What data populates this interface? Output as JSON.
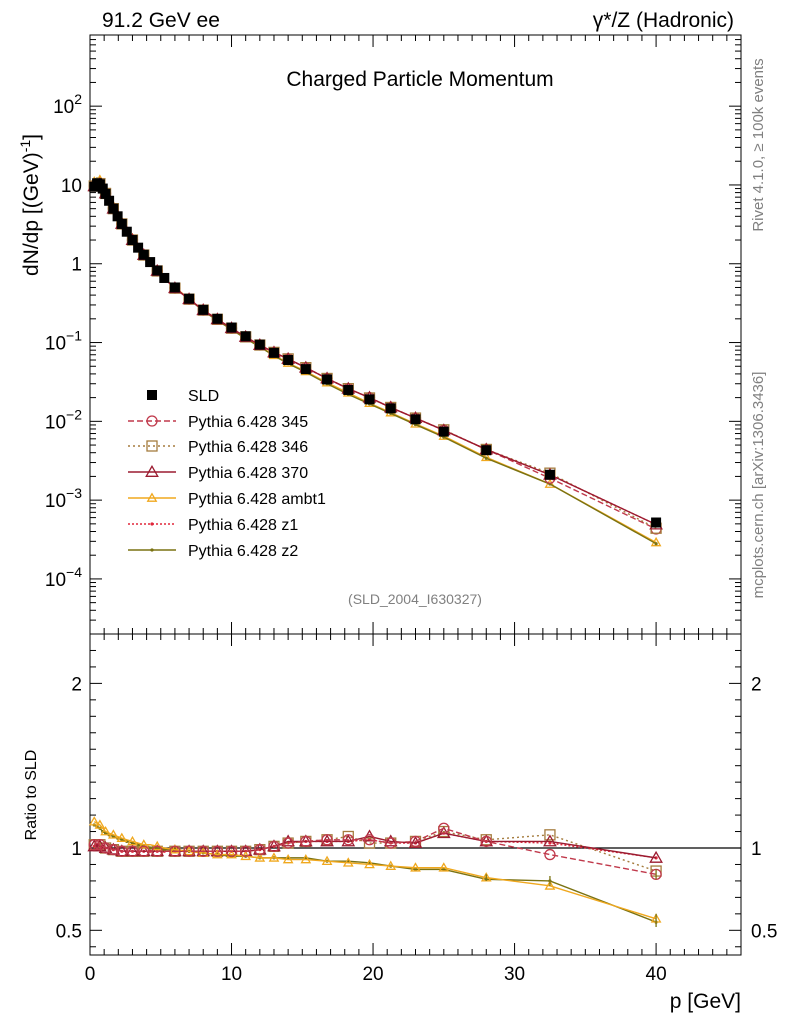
{
  "header": {
    "left": "91.2 GeV ee",
    "right": "γ*/Z (Hadronic)"
  },
  "side_text": {
    "top": "Rivet 4.1.0, ≥ 100k events",
    "bottom": "mcplots.cern.ch [arXiv:1306.3436]"
  },
  "colors": {
    "SLD": "#000000",
    "Pythia 6.428 345": "#c0394b",
    "Pythia 6.428 346": "#a57c3e",
    "Pythia 6.428 370": "#9b1b30",
    "Pythia 6.428 ambt1": "#f0a81e",
    "Pythia 6.428 z1": "#e0263a",
    "Pythia 6.428 z2": "#7a7212"
  },
  "chart_data": [
    {
      "type": "line",
      "title": "Charged Particle Momentum",
      "subtitle": "(SLD_2004_I630327)",
      "ylabel": "dN/dp [(GeV)^-1]",
      "yscale": "log",
      "xlim": [
        0,
        46
      ],
      "ylim": [
        2e-05,
        800
      ],
      "yticks": [
        {
          "v": 0.0001,
          "base": "10",
          "exp": "−4"
        },
        {
          "v": 0.001,
          "base": "10",
          "exp": "−3"
        },
        {
          "v": 0.01,
          "base": "10",
          "exp": "−2"
        },
        {
          "v": 0.1,
          "base": "10",
          "exp": "−1"
        },
        {
          "v": 1,
          "base": "1",
          "exp": ""
        },
        {
          "v": 10,
          "base": "10",
          "exp": ""
        },
        {
          "v": 100,
          "base": "10",
          "exp": "2"
        }
      ],
      "x": [
        0.3,
        0.5,
        0.7,
        0.9,
        1.1,
        1.35,
        1.65,
        1.95,
        2.25,
        2.6,
        3.0,
        3.4,
        3.8,
        4.25,
        4.75,
        5.25,
        6.0,
        7.0,
        8.0,
        9.0,
        10.0,
        11.0,
        12.0,
        13.0,
        14.0,
        15.25,
        16.75,
        18.25,
        19.75,
        21.25,
        23.0,
        25.0,
        28.0,
        32.5,
        40.0
      ],
      "series": [
        {
          "name": "SLD",
          "marker": "square",
          "dash": "",
          "values": [
            9.5,
            10.5,
            10.2,
            9.0,
            7.7,
            6.3,
            5.0,
            4.0,
            3.2,
            2.55,
            2.0,
            1.6,
            1.3,
            1.05,
            0.82,
            0.66,
            0.5,
            0.36,
            0.26,
            0.2,
            0.155,
            0.12,
            0.094,
            0.074,
            0.06,
            0.046,
            0.034,
            0.025,
            0.019,
            0.0146,
            0.0106,
            0.0074,
            0.0043,
            0.0021,
            0.00052
          ]
        },
        {
          "name": "Pythia 6.428 345",
          "marker": "circle",
          "dash": "6,3",
          "values": [
            9.7,
            10.8,
            10.4,
            9.1,
            7.8,
            6.3,
            5.0,
            4.0,
            3.2,
            2.55,
            2.0,
            1.6,
            1.29,
            1.04,
            0.81,
            0.65,
            0.49,
            0.355,
            0.258,
            0.197,
            0.152,
            0.118,
            0.093,
            0.075,
            0.062,
            0.048,
            0.035,
            0.026,
            0.02,
            0.015,
            0.011,
            0.0077,
            0.0044,
            0.0019,
            0.00043
          ]
        },
        {
          "name": "Pythia 6.428 346",
          "marker": "square-open",
          "dash": "2,3",
          "values": [
            9.7,
            10.8,
            10.4,
            9.1,
            7.8,
            6.3,
            5.0,
            4.0,
            3.2,
            2.55,
            2.0,
            1.6,
            1.29,
            1.04,
            0.81,
            0.65,
            0.49,
            0.355,
            0.258,
            0.197,
            0.152,
            0.118,
            0.093,
            0.075,
            0.062,
            0.048,
            0.035,
            0.026,
            0.0198,
            0.015,
            0.011,
            0.0078,
            0.0044,
            0.0022,
            0.00044
          ]
        },
        {
          "name": "Pythia 6.428 370",
          "marker": "triangle-open",
          "dash": "",
          "values": [
            9.6,
            10.7,
            10.3,
            9.1,
            7.8,
            6.3,
            5.0,
            4.0,
            3.2,
            2.55,
            2.0,
            1.6,
            1.29,
            1.04,
            0.81,
            0.65,
            0.49,
            0.355,
            0.258,
            0.197,
            0.152,
            0.118,
            0.093,
            0.075,
            0.062,
            0.048,
            0.035,
            0.026,
            0.02,
            0.015,
            0.011,
            0.0077,
            0.0044,
            0.0021,
            0.00049
          ]
        },
        {
          "name": "Pythia 6.428 ambt1",
          "marker": "triangle",
          "dash": "",
          "values": [
            11.0,
            12.1,
            11.6,
            10.1,
            8.5,
            6.9,
            5.4,
            4.3,
            3.4,
            2.7,
            2.1,
            1.66,
            1.33,
            1.07,
            0.83,
            0.66,
            0.5,
            0.36,
            0.255,
            0.193,
            0.148,
            0.113,
            0.089,
            0.069,
            0.055,
            0.043,
            0.031,
            0.023,
            0.017,
            0.0129,
            0.0093,
            0.0065,
            0.0035,
            0.0016,
            0.00029
          ]
        },
        {
          "name": "Pythia 6.428 z1",
          "marker": "dot",
          "dash": "2,2",
          "values": [
            9.6,
            10.7,
            10.3,
            9.0,
            7.7,
            6.3,
            5.0,
            4.0,
            3.2,
            2.55,
            2.0,
            1.6,
            1.29,
            1.04,
            0.81,
            0.65,
            0.49,
            0.355,
            0.258,
            0.197,
            0.152,
            0.118,
            0.093,
            0.075,
            0.062,
            0.048,
            0.035,
            0.026,
            0.02,
            0.015,
            0.011,
            0.0077,
            0.0044,
            0.0021,
            0.00049
          ]
        },
        {
          "name": "Pythia 6.428 z2",
          "marker": "dot",
          "dash": "",
          "values": [
            10.8,
            11.9,
            11.4,
            9.9,
            8.4,
            6.8,
            5.35,
            4.25,
            3.35,
            2.65,
            2.05,
            1.63,
            1.31,
            1.05,
            0.82,
            0.655,
            0.495,
            0.355,
            0.252,
            0.19,
            0.146,
            0.112,
            0.088,
            0.068,
            0.054,
            0.042,
            0.03,
            0.022,
            0.0166,
            0.0126,
            0.0091,
            0.0063,
            0.0034,
            0.0016,
            0.00028
          ]
        }
      ]
    },
    {
      "type": "line",
      "title": "",
      "xlabel": "p [GeV]",
      "ylabel": "Ratio to SLD",
      "xlim": [
        0,
        46
      ],
      "ylim": [
        0.35,
        2.3
      ],
      "xticks": [
        0,
        10,
        20,
        30,
        40
      ],
      "yticks": [
        0.5,
        1,
        2
      ],
      "reference": 1,
      "x": [
        0.3,
        0.5,
        0.7,
        0.9,
        1.1,
        1.35,
        1.65,
        1.95,
        2.25,
        2.6,
        3.0,
        3.4,
        3.8,
        4.25,
        4.75,
        5.25,
        6.0,
        7.0,
        8.0,
        9.0,
        10.0,
        11.0,
        12.0,
        13.0,
        14.0,
        15.25,
        16.75,
        18.25,
        19.75,
        21.25,
        23.0,
        25.0,
        28.0,
        32.5,
        40.0
      ],
      "series": [
        {
          "name": "Pythia 6.428 345",
          "marker": "circle",
          "dash": "6,3",
          "values": [
            1.02,
            1.03,
            1.02,
            1.01,
            1.0,
            1.0,
            0.99,
            0.99,
            0.98,
            0.98,
            0.98,
            0.98,
            0.98,
            0.98,
            0.98,
            0.98,
            0.98,
            0.98,
            0.98,
            0.98,
            0.98,
            0.98,
            0.99,
            1.01,
            1.03,
            1.04,
            1.05,
            1.05,
            1.05,
            1.03,
            1.04,
            1.12,
            1.04,
            0.96,
            0.84
          ]
        },
        {
          "name": "Pythia 6.428 346",
          "marker": "square-open",
          "dash": "2,3",
          "values": [
            1.02,
            1.03,
            1.02,
            1.01,
            1.0,
            1.0,
            0.99,
            0.99,
            0.98,
            0.98,
            0.98,
            0.98,
            0.98,
            0.98,
            0.98,
            0.98,
            0.98,
            0.98,
            0.98,
            0.98,
            0.98,
            0.98,
            0.99,
            1.01,
            1.03,
            1.04,
            1.05,
            1.07,
            1.03,
            1.03,
            1.04,
            1.1,
            1.05,
            1.08,
            0.86
          ]
        },
        {
          "name": "Pythia 6.428 370",
          "marker": "triangle-open",
          "dash": "",
          "values": [
            1.01,
            1.02,
            1.01,
            1.01,
            1.0,
            1.0,
            0.99,
            0.99,
            0.98,
            0.98,
            0.98,
            0.98,
            0.98,
            0.98,
            0.98,
            0.98,
            0.98,
            0.98,
            0.98,
            0.98,
            0.98,
            0.98,
            0.99,
            1.01,
            1.04,
            1.04,
            1.04,
            1.04,
            1.07,
            1.04,
            1.03,
            1.09,
            1.04,
            1.04,
            0.94
          ]
        },
        {
          "name": "Pythia 6.428 ambt1",
          "marker": "triangle",
          "dash": "",
          "values": [
            1.16,
            1.15,
            1.14,
            1.12,
            1.1,
            1.09,
            1.08,
            1.07,
            1.06,
            1.05,
            1.04,
            1.03,
            1.02,
            1.02,
            1.01,
            1.0,
            0.99,
            0.98,
            0.97,
            0.96,
            0.96,
            0.95,
            0.94,
            0.94,
            0.93,
            0.93,
            0.92,
            0.91,
            0.9,
            0.89,
            0.88,
            0.88,
            0.82,
            0.77,
            0.57
          ]
        },
        {
          "name": "Pythia 6.428 z1",
          "marker": "dot",
          "dash": "2,2",
          "values": [
            1.01,
            1.02,
            1.01,
            1.0,
            1.0,
            0.99,
            0.99,
            0.98,
            0.98,
            0.98,
            0.98,
            0.98,
            0.98,
            0.98,
            0.98,
            0.98,
            0.98,
            0.98,
            0.98,
            0.98,
            0.98,
            0.98,
            0.99,
            1.01,
            1.03,
            1.04,
            1.04,
            1.04,
            1.05,
            1.03,
            1.03,
            1.09,
            1.04,
            1.03,
            0.94
          ]
        },
        {
          "name": "Pythia 6.428 z2",
          "marker": "dot",
          "dash": "",
          "values": [
            1.14,
            1.13,
            1.12,
            1.1,
            1.09,
            1.08,
            1.07,
            1.06,
            1.05,
            1.04,
            1.03,
            1.02,
            1.01,
            1.0,
            1.0,
            0.99,
            0.99,
            0.98,
            0.97,
            0.96,
            0.95,
            0.95,
            0.94,
            0.94,
            0.94,
            0.94,
            0.92,
            0.92,
            0.91,
            0.89,
            0.87,
            0.87,
            0.81,
            0.8,
            0.55
          ]
        }
      ]
    }
  ]
}
